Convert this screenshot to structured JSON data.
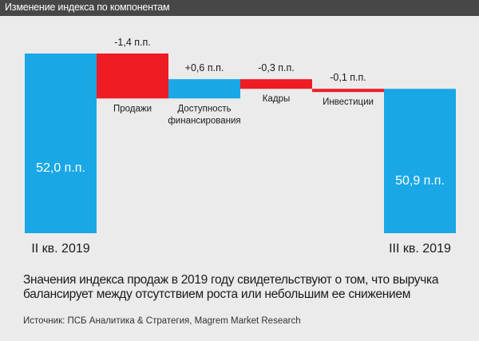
{
  "header": {
    "title": "Изменение индекса по компонентам"
  },
  "chart_data": {
    "type": "waterfall",
    "title": "Изменение индекса по компонентам",
    "unit": "п.п.",
    "start": {
      "label": "II кв. 2019",
      "value": 52.0,
      "value_label": "52,0 п.п."
    },
    "steps": [
      {
        "label": [
          "Продажи"
        ],
        "value": -1.4,
        "value_label": "-1,4 п.п."
      },
      {
        "label": [
          "Доступность",
          "финансирования"
        ],
        "value": 0.6,
        "value_label": "+0,6 п.п."
      },
      {
        "label": [
          "Кадры"
        ],
        "value": -0.3,
        "value_label": "-0,3 п.п."
      },
      {
        "label": [
          "Инвестиции"
        ],
        "value": -0.1,
        "value_label": "-0,1 п.п."
      }
    ],
    "end": {
      "label": "III кв. 2019",
      "value": 50.9,
      "value_label": "50,9 п.п."
    },
    "colors": {
      "total": "#1aa7e6",
      "increase": "#1aa7e6",
      "decrease": "#ee1c24",
      "label": "#ffffff"
    }
  },
  "caption": {
    "line1": "Значения индекса продаж в 2019 году свидетельствуют о том, что выручка",
    "line2": "балансирует между отсутствием роста или небольшим ее снижением"
  },
  "source": "Источник: ПСБ Аналитика & Стратегия, Magrem Market Research"
}
